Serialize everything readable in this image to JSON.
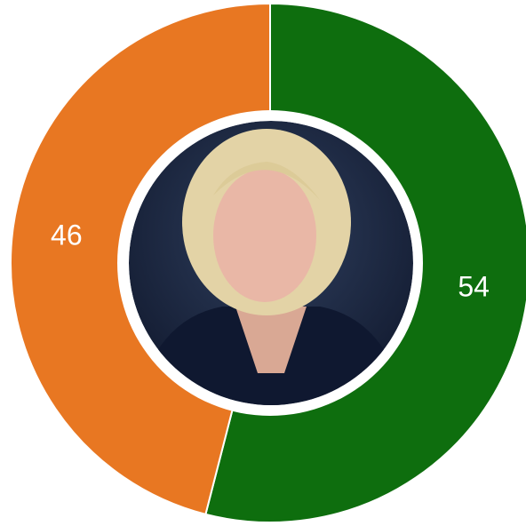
{
  "chart_data": {
    "type": "donut",
    "categories": [
      null,
      null
    ],
    "values": [
      54,
      46
    ],
    "colors": [
      "#0e6e0e",
      "#e87722"
    ]
  }
}
